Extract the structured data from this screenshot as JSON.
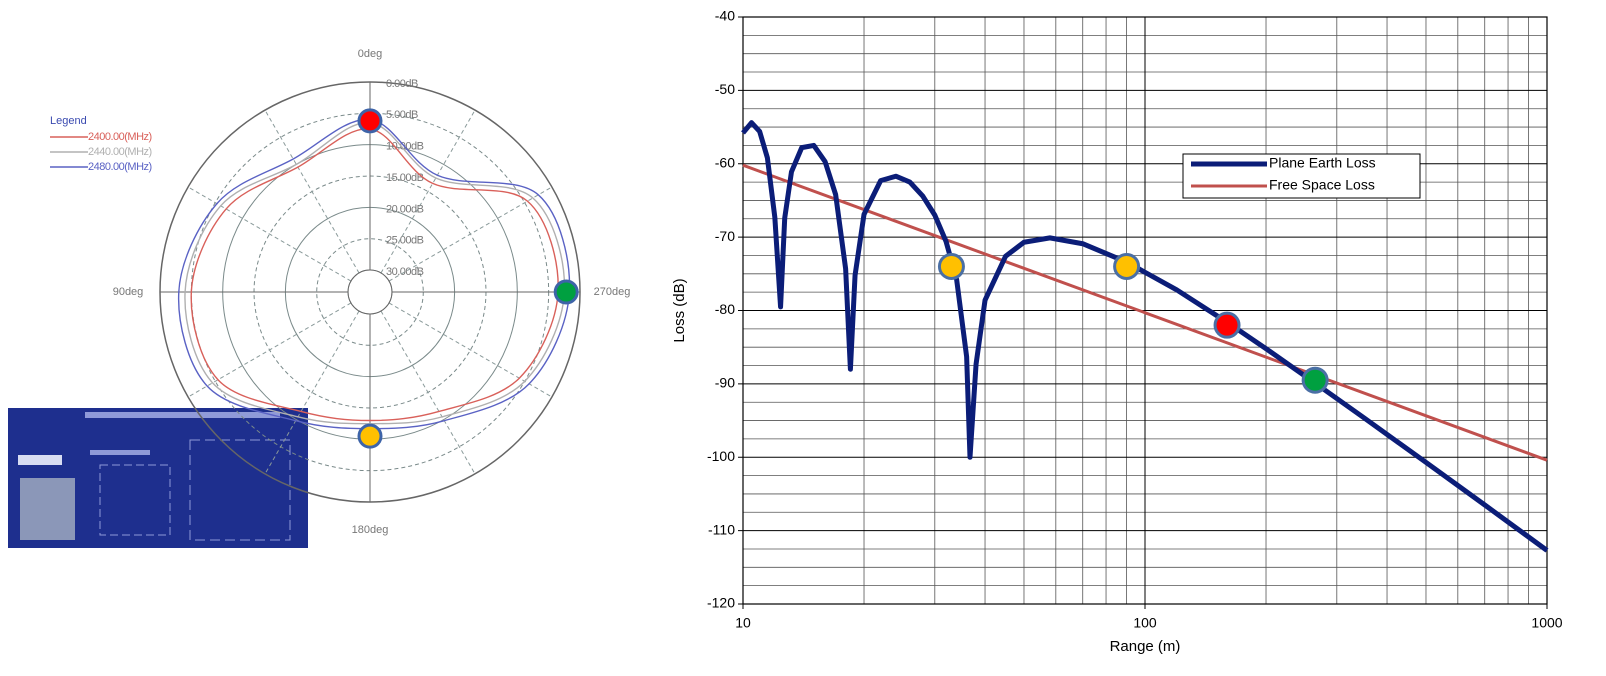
{
  "chart_data": [
    {
      "type": "polar",
      "legend_title": "Legend",
      "direction": "counterclockwise",
      "rlim": [
        33.5,
        0
      ],
      "rticks": [
        {
          "value": 0,
          "label": "0.00dB"
        },
        {
          "value": 5,
          "label": "5.00dB"
        },
        {
          "value": 10,
          "label": "10.00dB"
        },
        {
          "value": 15,
          "label": "15.00dB"
        },
        {
          "value": 20,
          "label": "20.00dB"
        },
        {
          "value": 25,
          "label": "25.00dB"
        },
        {
          "value": 30,
          "label": "30.00dB"
        }
      ],
      "angle_ticks": [
        {
          "value": 0,
          "label": "0deg"
        },
        {
          "value": 90,
          "label": "90deg"
        },
        {
          "value": 180,
          "label": "180deg"
        },
        {
          "value": 270,
          "label": "270deg"
        }
      ],
      "angles": [
        0,
        30,
        60,
        90,
        120,
        150,
        180,
        210,
        240,
        270,
        300,
        330
      ],
      "series": [
        {
          "name": "2400.00(MHz)",
          "color": "#d9605a",
          "values": [
            7.5,
            10.5,
            7,
            5,
            5.5,
            11.5,
            13,
            11.5,
            6,
            3.5,
            4.5,
            13.5
          ]
        },
        {
          "name": "2440.00(MHz)",
          "color": "#b0b0b0",
          "values": [
            6.5,
            10,
            6,
            4,
            4.5,
            10.5,
            12.5,
            10.5,
            5,
            2.5,
            3.5,
            12.5
          ]
        },
        {
          "name": "2480.00(MHz)",
          "color": "#5a62c4",
          "values": [
            6,
            9,
            5.3,
            3,
            3.5,
            9.8,
            11.7,
            9.8,
            4.2,
            1.7,
            2.5,
            12
          ]
        }
      ],
      "markers": [
        {
          "angle": 0,
          "value": 6.2,
          "color": "#ff0000"
        },
        {
          "angle": 180,
          "value": 10.5,
          "color": "#ffc000"
        },
        {
          "angle": 270,
          "value": 2.2,
          "color": "#00a040"
        }
      ]
    },
    {
      "type": "line",
      "xlabel": "Range (m)",
      "ylabel": "Loss (dB)",
      "xscale": "log",
      "xlim": [
        10,
        1000
      ],
      "ylim": [
        -120,
        -40
      ],
      "xticks": [
        10,
        100,
        1000
      ],
      "yticks": [
        -120,
        -110,
        -100,
        -90,
        -80,
        -70,
        -60,
        -50,
        -40
      ],
      "xminor": [
        20,
        30,
        40,
        50,
        60,
        70,
        80,
        90,
        200,
        300,
        400,
        500,
        600,
        700,
        800,
        900
      ],
      "yminor": [
        -117.5,
        -115,
        -112.5,
        -107.5,
        -105,
        -102.5,
        -97.5,
        -95,
        -92.5,
        -87.5,
        -85,
        -82.5,
        -77.5,
        -75,
        -72.5,
        -67.5,
        -65,
        -62.5,
        -57.5,
        -55,
        -52.5,
        -47.5,
        -45,
        -42.5
      ],
      "grid": true,
      "legend": "right",
      "series": [
        {
          "name": "Plane Earth Loss",
          "color": "#0b1d78",
          "x": [
            10,
            10.5,
            11,
            11.5,
            12,
            12.4,
            12.7,
            13.2,
            14,
            15,
            16,
            17,
            18,
            18.5,
            19,
            20,
            22,
            24,
            26,
            28,
            30,
            32,
            34,
            36,
            36.7,
            38,
            40,
            45,
            50,
            58,
            70,
            90,
            120,
            160,
            200,
            265,
            350,
            500,
            700,
            1000
          ],
          "values": [
            -55.8,
            -54.4,
            -55.6,
            -59.2,
            -67.3,
            -79.5,
            -67.4,
            -61.1,
            -57.8,
            -57.5,
            -59.7,
            -64.2,
            -74.3,
            -88,
            -75.2,
            -66.9,
            -62.3,
            -61.7,
            -62.5,
            -64.4,
            -67,
            -70.6,
            -75.8,
            -86.3,
            -100,
            -87.3,
            -78.6,
            -72.6,
            -70.7,
            -70.1,
            -70.9,
            -73.4,
            -77.2,
            -81.6,
            -85.2,
            -89.9,
            -94.6,
            -100.7,
            -106.5,
            -112.7
          ]
        },
        {
          "name": "Free Space Loss",
          "color": "#c0504d",
          "x": [
            10,
            1000
          ],
          "values": [
            -60.2,
            -100.4
          ]
        }
      ],
      "markers": [
        {
          "x": 33,
          "y": -74,
          "color": "#ffc000"
        },
        {
          "x": 90,
          "y": -74,
          "color": "#ffc000"
        },
        {
          "x": 160,
          "y": -82,
          "color": "#ff0000"
        },
        {
          "x": 265,
          "y": -89.5,
          "color": "#00a040"
        }
      ]
    }
  ]
}
